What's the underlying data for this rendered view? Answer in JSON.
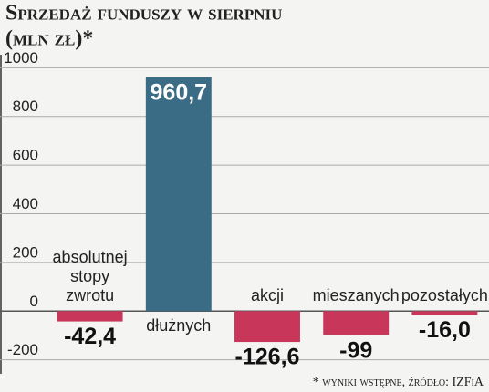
{
  "chart_data": {
    "type": "bar",
    "title": "Sprzedaż funduszy w sierpniu",
    "subtitle": "(mln zł)*",
    "categories": [
      "absolutnej stopy zwrotu",
      "dłużnych",
      "akcji",
      "mieszanych",
      "pozostałych"
    ],
    "values": [
      -42.4,
      960.7,
      -126.6,
      -99,
      -16.0
    ],
    "value_labels": [
      "-42,4",
      "960,7",
      "-126,6",
      "-99",
      "-16,0"
    ],
    "colors": [
      "#c8365a",
      "#3b6c86",
      "#c8365a",
      "#c8365a",
      "#c8365a"
    ],
    "ylim": [
      -250,
      1050
    ],
    "yticks": [
      -200,
      0,
      200,
      400,
      600,
      800,
      1000
    ],
    "grid": true,
    "note": "* wyniki wstępne, źródło: IZFiA"
  }
}
